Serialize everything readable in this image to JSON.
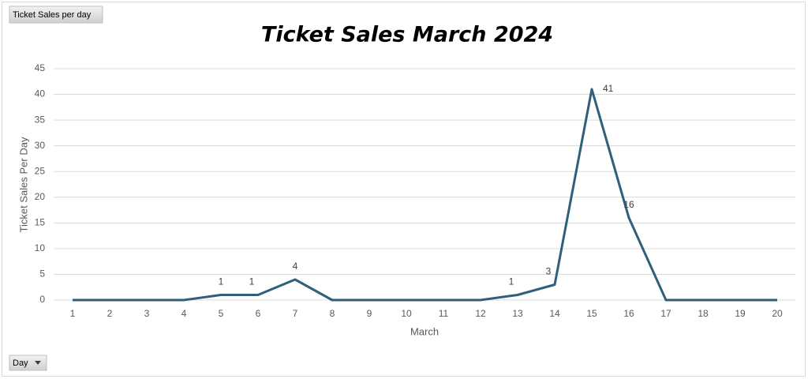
{
  "chart_data": {
    "type": "line",
    "title": "Ticket Sales March 2024",
    "field_button": "Ticket Sales per day",
    "axis_field_button": "Day",
    "x_label": "March",
    "y_label": "Ticket Sales Per Day",
    "categories": [
      "1",
      "2",
      "3",
      "4",
      "5",
      "6",
      "7",
      "8",
      "9",
      "10",
      "11",
      "12",
      "13",
      "14",
      "15",
      "16",
      "17",
      "18",
      "19",
      "20"
    ],
    "values": [
      0,
      0,
      0,
      0,
      1,
      1,
      4,
      0,
      0,
      0,
      0,
      0,
      1,
      3,
      41,
      16,
      0,
      0,
      0,
      0
    ],
    "color": "#2f5f7b",
    "ylim": [
      0,
      45
    ],
    "yticks": [
      0,
      5,
      10,
      15,
      20,
      25,
      30,
      35,
      40,
      45
    ],
    "grid": true,
    "data_labels": true
  }
}
